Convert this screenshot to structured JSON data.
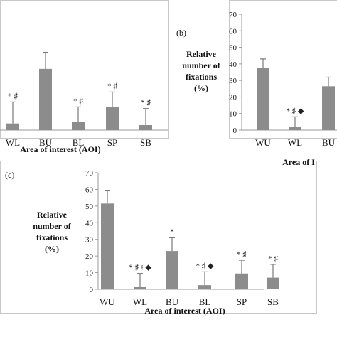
{
  "chart_data": [
    {
      "panel": "",
      "type": "bar",
      "categories": [
        "WL",
        "BU",
        "BL",
        "SP",
        "SB"
      ],
      "values": [
        4,
        37,
        5,
        14,
        3
      ],
      "errors": [
        13,
        10,
        9,
        9,
        10
      ],
      "significance": [
        "* ♯",
        "",
        "* ♯",
        "* ♯",
        "* ♯"
      ],
      "xlabel": "Area of interest (AOI)",
      "ylabel": "",
      "ylim": [
        0,
        70
      ],
      "color": "#8c8c8c"
    },
    {
      "panel": "(b)",
      "type": "bar",
      "categories": [
        "WU",
        "WL",
        "BU"
      ],
      "values": [
        37.5,
        2,
        26.5
      ],
      "errors": [
        5.5,
        6,
        5.5
      ],
      "significance": [
        "",
        "* ♯ ◆",
        ""
      ],
      "xlabel": "Area of I",
      "ylabel": "Relative number of fixations (%)",
      "ylim": [
        0,
        70
      ],
      "yticks": [
        0,
        10,
        20,
        30,
        40,
        50,
        60,
        70
      ],
      "color": "#8c8c8c"
    },
    {
      "panel": "(c)",
      "type": "bar",
      "categories": [
        "WU",
        "WL",
        "BU",
        "BL",
        "SP",
        "SB"
      ],
      "values": [
        51.5,
        1.5,
        23,
        2.5,
        9.5,
        7
      ],
      "errors": [
        8,
        8,
        8,
        8,
        8,
        8
      ],
      "significance": [
        "",
        "* ♯ ♮ ◆",
        "*",
        "* ♯ ◆",
        "* ♯",
        "* ♯"
      ],
      "xlabel": "Area of interest (AOI)",
      "ylabel": "Relative number of fixations (%)",
      "ylim": [
        0,
        70
      ],
      "yticks": [
        0,
        10,
        20,
        30,
        40,
        50,
        60,
        70
      ],
      "color": "#8c8c8c"
    }
  ]
}
